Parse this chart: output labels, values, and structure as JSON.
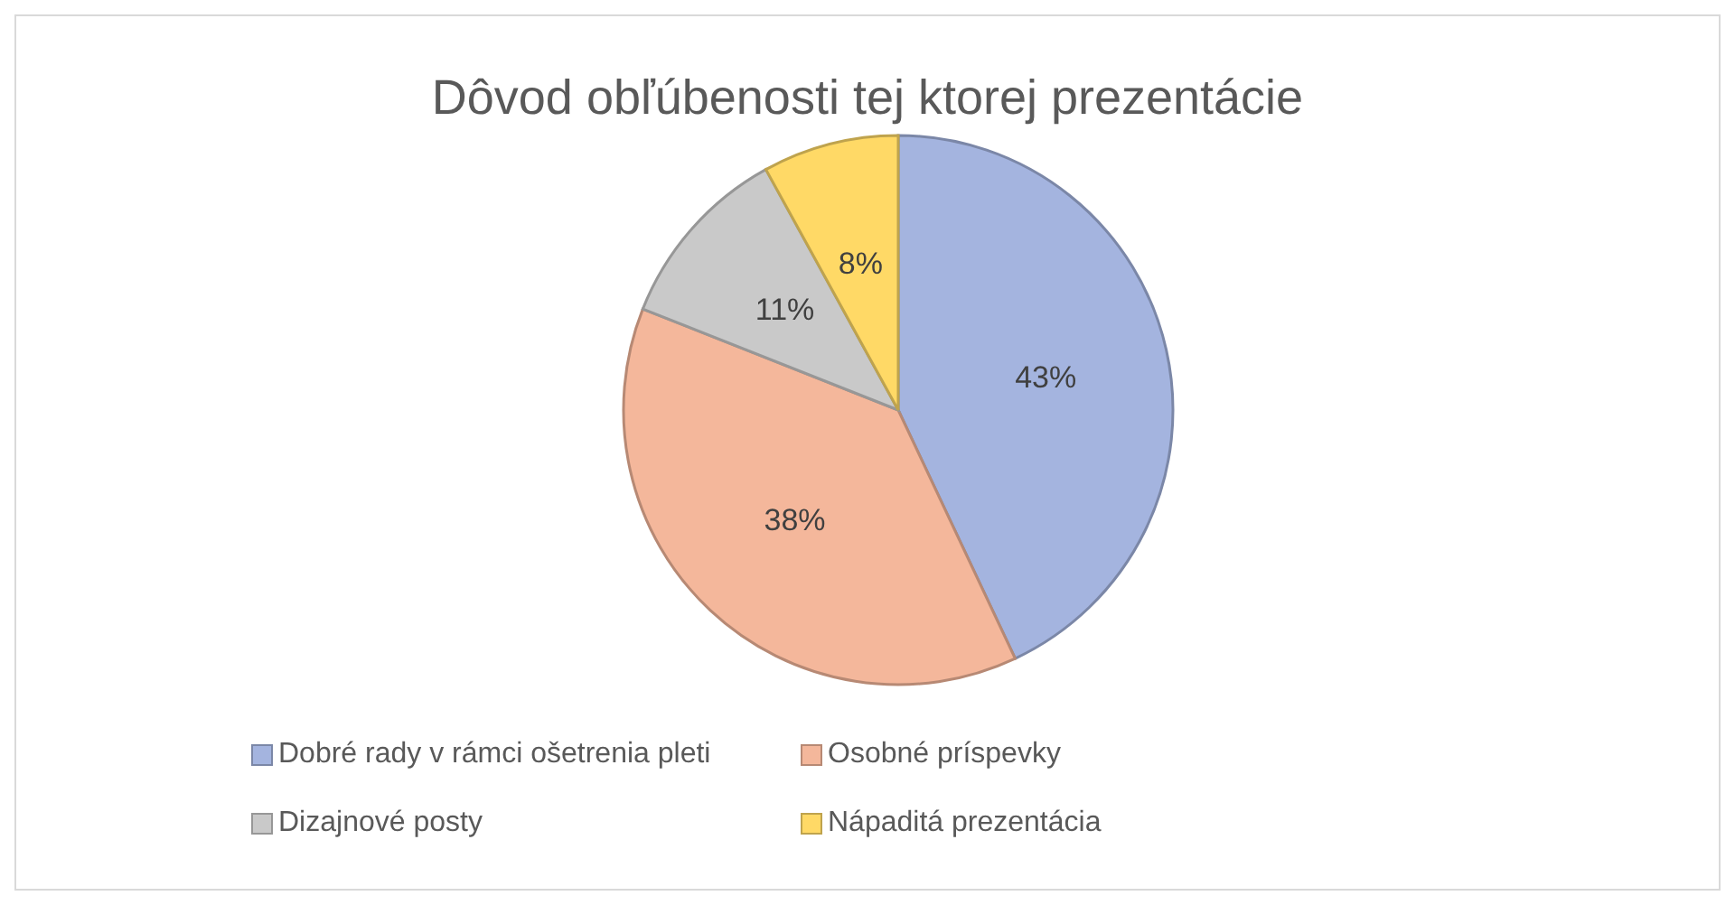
{
  "chart_data": {
    "type": "pie",
    "title": "Dôvod obľúbenosti tej ktorej prezentácie",
    "categories": [
      "Dobré rady v rámci ošetrenia pleti",
      "Osobné príspevky",
      "Dizajnové posty",
      "Nápaditá prezentácia"
    ],
    "values": [
      43,
      38,
      11,
      8
    ],
    "colors": [
      "#a4b4df",
      "#f4b79b",
      "#c9c9c9",
      "#ffd966"
    ],
    "value_labels": [
      "43%",
      "38%",
      "11%",
      "8%"
    ],
    "legend": "bottom"
  }
}
